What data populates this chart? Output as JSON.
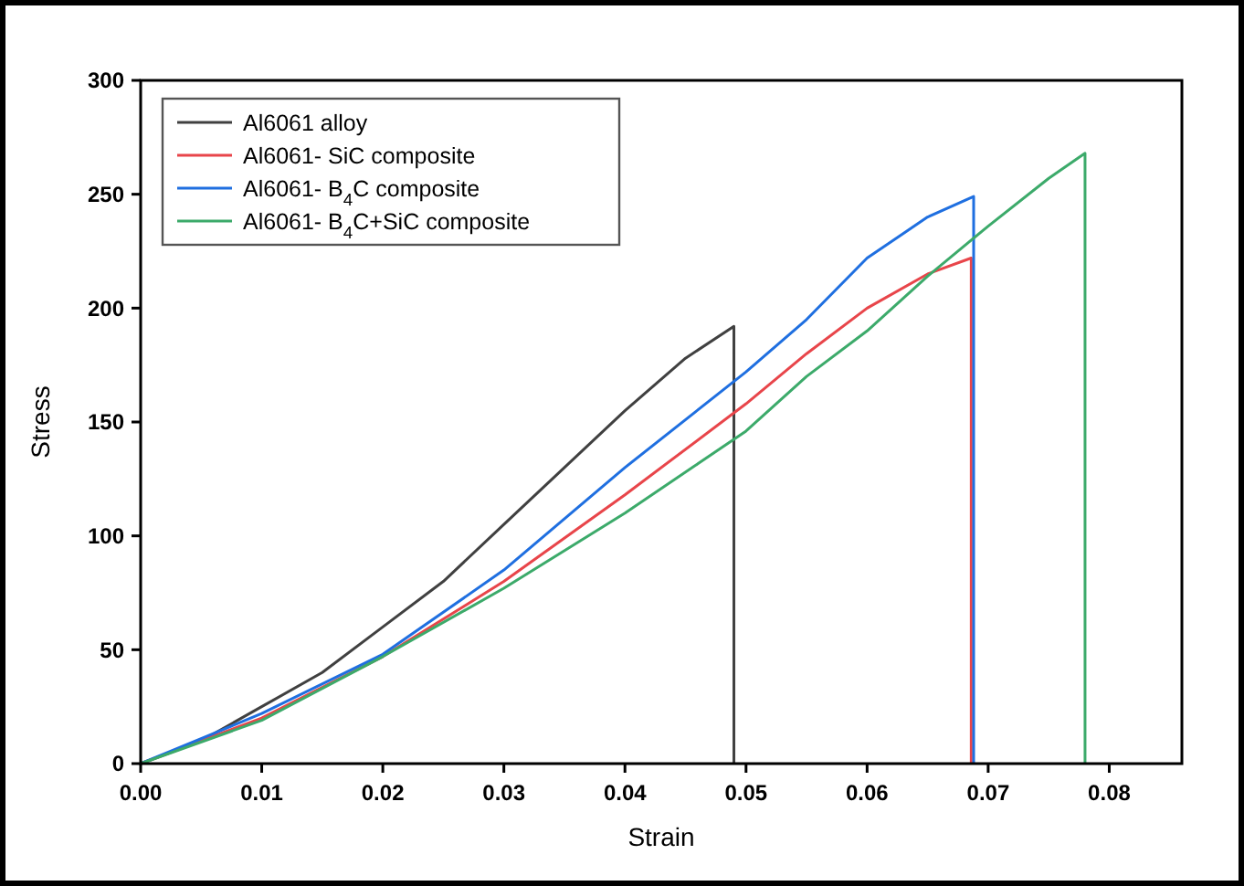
{
  "chart_data": {
    "type": "line",
    "xlabel": "Strain",
    "ylabel": "Stress",
    "xlim": [
      0,
      0.086
    ],
    "ylim": [
      0,
      300
    ],
    "xticks": [
      {
        "value": 0,
        "label": "0.00"
      },
      {
        "value": 0.01,
        "label": "0.01"
      },
      {
        "value": 0.02,
        "label": "0.02"
      },
      {
        "value": 0.03,
        "label": "0.03"
      },
      {
        "value": 0.04,
        "label": "0.04"
      },
      {
        "value": 0.05,
        "label": "0.05"
      },
      {
        "value": 0.06,
        "label": "0.06"
      },
      {
        "value": 0.07,
        "label": "0.07"
      },
      {
        "value": 0.08,
        "label": "0.08"
      }
    ],
    "yticks": [
      0,
      50,
      100,
      150,
      200,
      250,
      300
    ],
    "legend": "top left",
    "grid": false,
    "line_style": "solid",
    "marker": "none",
    "series": [
      {
        "name": "Al6061 alloy",
        "color": "#404040",
        "x": [
          0,
          0.005,
          0.01,
          0.015,
          0.02,
          0.025,
          0.03,
          0.035,
          0.04,
          0.045,
          0.049,
          0.049
        ],
        "values": [
          0,
          10,
          25,
          40,
          60,
          80,
          105,
          130,
          155,
          178,
          192,
          0
        ]
      },
      {
        "name": "Al6061- SiC composite",
        "color": "#e8454a",
        "x": [
          0,
          0.01,
          0.02,
          0.03,
          0.04,
          0.05,
          0.055,
          0.06,
          0.065,
          0.0686,
          0.0686
        ],
        "values": [
          0,
          20,
          47,
          80,
          118,
          158,
          180,
          200,
          215,
          222,
          0
        ]
      },
      {
        "name": "Al6061- B$_{4}$C composite",
        "color": "#1f6fe0",
        "x": [
          0,
          0.01,
          0.02,
          0.03,
          0.04,
          0.05,
          0.055,
          0.06,
          0.065,
          0.0688,
          0.0688
        ],
        "values": [
          0,
          22,
          48,
          85,
          130,
          172,
          195,
          222,
          240,
          249,
          0
        ]
      },
      {
        "name": "Al6061- B$_{4}$C+SiC composite",
        "color": "#3caa6a",
        "x": [
          0,
          0.01,
          0.02,
          0.03,
          0.04,
          0.05,
          0.055,
          0.06,
          0.065,
          0.07,
          0.075,
          0.078,
          0.078
        ],
        "values": [
          0,
          19,
          47,
          77,
          110,
          146,
          170,
          190,
          214,
          236,
          257,
          268,
          0
        ]
      }
    ]
  }
}
